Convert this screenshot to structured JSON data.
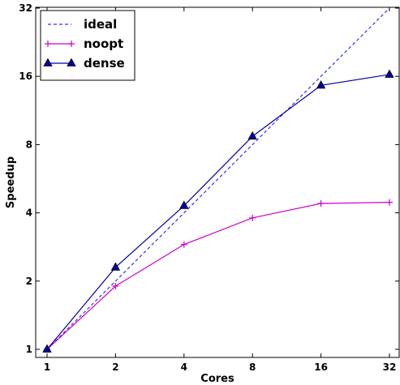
{
  "chart_data": {
    "type": "line",
    "title": "",
    "xlabel": "Cores",
    "ylabel": "Speedup",
    "x_scale": "log2",
    "y_scale": "log2",
    "xlim": [
      1,
      32
    ],
    "ylim": [
      1,
      32
    ],
    "x_ticks": [
      1,
      2,
      4,
      8,
      16,
      32
    ],
    "x_tick_labels": [
      "1",
      "2",
      "4",
      "8",
      "16",
      "32"
    ],
    "y_ticks": [
      1,
      2,
      4,
      8,
      16,
      32
    ],
    "y_tick_labels": [
      "1",
      "2",
      "4",
      "8",
      "16",
      "32"
    ],
    "grid": false,
    "legend_position": "top-left",
    "x": [
      1,
      2,
      4,
      8,
      16,
      32
    ],
    "series": [
      {
        "name": "ideal",
        "values": [
          1,
          2,
          4,
          8,
          16,
          32
        ],
        "color": "#3333ee",
        "style": "dashed",
        "marker": "none"
      },
      {
        "name": "noopt",
        "values": [
          1,
          1.9,
          2.9,
          3.8,
          4.4,
          4.45
        ],
        "color": "#cc00cc",
        "style": "solid",
        "marker": "plus"
      },
      {
        "name": "dense",
        "values": [
          1,
          2.3,
          4.3,
          8.7,
          14.6,
          16.3
        ],
        "color": "#0000aa",
        "style": "solid",
        "marker": "triangle"
      }
    ]
  }
}
